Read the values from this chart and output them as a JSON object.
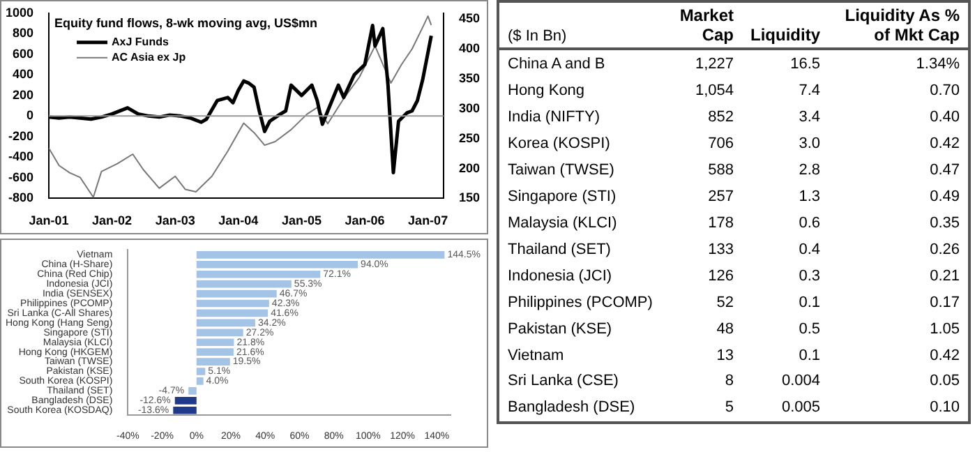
{
  "chart_data": [
    {
      "type": "line",
      "title": "Equity fund flows, 8-wk moving avg, US$mn",
      "legend": "top left",
      "xlim": [
        "2001-01",
        "2007-04"
      ],
      "xticks": [
        {
          "value": "2001-01",
          "label": "Jan-01"
        },
        {
          "value": "2002-01",
          "label": "Jan-02"
        },
        {
          "value": "2003-01",
          "label": "Jan-03"
        },
        {
          "value": "2004-01",
          "label": "Jan-04"
        },
        {
          "value": "2005-01",
          "label": "Jan-05"
        },
        {
          "value": "2006-01",
          "label": "Jan-06"
        },
        {
          "value": "2007-01",
          "label": "Jan-07"
        }
      ],
      "ylim": [
        -800,
        1000
      ],
      "yticks": [
        -800,
        -600,
        -400,
        -200,
        0,
        200,
        400,
        600,
        800,
        1000
      ],
      "y2lim": [
        150,
        460
      ],
      "y2ticks": [
        150,
        200,
        250,
        300,
        350,
        400,
        450
      ],
      "ref_lines": [
        {
          "axis": "y",
          "value": 0,
          "color": "#999999"
        }
      ],
      "series": [
        {
          "name": "AxJ Funds",
          "color": "#000000",
          "x": [
            "2001-01",
            "2001-03",
            "2001-05",
            "2001-07",
            "2001-09",
            "2001-11",
            "2002-01",
            "2002-04",
            "2002-06",
            "2002-08",
            "2002-10",
            "2002-12",
            "2003-02",
            "2003-04",
            "2003-06",
            "2003-07",
            "2003-09",
            "2003-11",
            "2003-12",
            "2004-01",
            "2004-02",
            "2004-03",
            "2004-04",
            "2004-05",
            "2004-06",
            "2004-07",
            "2004-09",
            "2004-10",
            "2004-11",
            "2005-01",
            "2005-03",
            "2005-04",
            "2005-05",
            "2005-06",
            "2005-08",
            "2005-09",
            "2005-11",
            "2006-01",
            "2006-02-15",
            "2006-03",
            "2006-04-15",
            "2006-05-15",
            "2006-06-15",
            "2006-07-15",
            "2006-09",
            "2006-10",
            "2006-11",
            "2006-12",
            "2007-01-20"
          ],
          "values": [
            -10,
            -20,
            -10,
            -20,
            -30,
            -10,
            20,
            80,
            20,
            0,
            -10,
            10,
            0,
            -20,
            -60,
            -30,
            150,
            180,
            130,
            250,
            340,
            320,
            280,
            50,
            -150,
            -50,
            20,
            50,
            300,
            200,
            300,
            150,
            -80,
            50,
            300,
            180,
            400,
            500,
            880,
            680,
            850,
            300,
            -550,
            -50,
            30,
            50,
            150,
            350,
            780
          ]
        },
        {
          "name": "AC Asia ex Jp",
          "color": "#777777",
          "axis": "y2",
          "x": [
            "2001-01",
            "2001-03",
            "2001-05",
            "2001-07",
            "2001-09-15",
            "2001-11",
            "2002-02",
            "2002-05",
            "2002-07",
            "2002-10",
            "2003-01",
            "2003-03",
            "2003-05",
            "2003-08",
            "2003-11",
            "2004-02",
            "2004-04",
            "2004-06",
            "2004-08",
            "2004-11",
            "2005-02",
            "2005-04",
            "2005-06",
            "2005-09",
            "2005-12",
            "2006-03",
            "2006-06",
            "2006-08",
            "2006-10",
            "2006-12",
            "2007-01",
            "2007-01-20"
          ],
          "values": [
            234,
            205,
            193,
            185,
            152,
            195,
            208,
            224,
            198,
            167,
            187,
            165,
            161,
            187,
            229,
            276,
            260,
            239,
            245,
            265,
            291,
            302,
            275,
            317,
            353,
            405,
            343,
            374,
            400,
            436,
            455,
            440
          ]
        }
      ]
    },
    {
      "type": "bar",
      "orientation": "horizontal",
      "categories": [
        "Vietnam",
        "China (H-Share)",
        "China (Red Chip)",
        "Indonesia (JCI)",
        "India (SENSEX)",
        "Philippines (PCOMP)",
        "Sri Lanka (C-All Shares)",
        "Hong Kong (Hang Seng)",
        "Singapore (STI)",
        "Malaysia (KLCI)",
        "Hong Kong (HKGEM)",
        "Taiwan (TWSE)",
        "Pakistan (KSE)",
        "South Korea (KOSPI)",
        "Thailand (SET)",
        "Bangladesh (DSE)",
        "South Korea (KOSDAQ)"
      ],
      "values": [
        144.5,
        94.0,
        72.1,
        55.3,
        46.7,
        42.3,
        41.6,
        34.2,
        27.2,
        21.8,
        21.6,
        19.5,
        5.1,
        4.0,
        -4.7,
        -12.6,
        -13.6
      ],
      "value_labels": [
        "144.5%",
        "94.0%",
        "72.1%",
        "55.3%",
        "46.7%",
        "42.3%",
        "41.6%",
        "34.2%",
        "27.2%",
        "21.8%",
        "21.6%",
        "19.5%",
        "5.1%",
        "4.0%",
        "-4.7%",
        "-12.6%",
        "-13.6%"
      ],
      "colors": [
        "#a3c4e6",
        "#a3c4e6",
        "#a3c4e6",
        "#a3c4e6",
        "#a3c4e6",
        "#a3c4e6",
        "#a3c4e6",
        "#a3c4e6",
        "#a3c4e6",
        "#a3c4e6",
        "#a3c4e6",
        "#a3c4e6",
        "#a3c4e6",
        "#a3c4e6",
        "#a3c4e6",
        "#1f3a8a",
        "#1f3a8a"
      ],
      "xlim": [
        -40,
        148
      ],
      "xticks": [
        {
          "value": -40,
          "label": "-40%"
        },
        {
          "value": -20,
          "label": "-20%"
        },
        {
          "value": 0,
          "label": "0%"
        },
        {
          "value": 20,
          "label": "20%"
        },
        {
          "value": 40,
          "label": "40%"
        },
        {
          "value": 60,
          "label": "60%"
        },
        {
          "value": 80,
          "label": "80%"
        },
        {
          "value": 100,
          "label": "100%"
        },
        {
          "value": 120,
          "label": "120%"
        },
        {
          "value": 140,
          "label": "140%"
        }
      ]
    },
    {
      "type": "other",
      "title": "($ In Bn)",
      "categories": [
        "China A and B",
        "Hong Kong",
        "India (NIFTY)",
        "Korea (KOSPI)",
        "Taiwan (TWSE)",
        "Singapore (STI)",
        "Malaysia (KLCI)",
        "Thailand (SET)",
        "Indonesia (JCI)",
        "Philippines (PCOMP)",
        "Pakistan (KSE)",
        "Vietnam",
        "Sri Lanka (CSE)",
        "Bangladesh (DSE)"
      ],
      "series": [
        {
          "name": "Market Cap",
          "values": [
            1227,
            1054,
            852,
            706,
            588,
            257,
            178,
            133,
            126,
            52,
            48,
            13,
            8,
            5
          ],
          "value_labels": [
            "1,227",
            "1,054",
            "852",
            "706",
            "588",
            "257",
            "178",
            "133",
            "126",
            "52",
            "48",
            "13",
            "8",
            "5"
          ]
        },
        {
          "name": "Liquidity",
          "values": [
            16.5,
            7.4,
            3.4,
            3.0,
            2.8,
            1.3,
            0.6,
            0.4,
            0.3,
            0.1,
            0.5,
            0.1,
            0.004,
            0.005
          ],
          "value_labels": [
            "16.5",
            "7.4",
            "3.4",
            "3.0",
            "2.8",
            "1.3",
            "0.6",
            "0.4",
            "0.3",
            "0.1",
            "0.5",
            "0.1",
            "0.004",
            "0.005"
          ]
        },
        {
          "name": "Liquidity As % of Mkt Cap",
          "values": [
            1.34,
            0.7,
            0.4,
            0.42,
            0.47,
            0.49,
            0.35,
            0.26,
            0.21,
            0.17,
            1.05,
            0.42,
            0.05,
            0.1
          ],
          "value_labels": [
            "1.34%",
            "0.70",
            "0.40",
            "0.42",
            "0.47",
            "0.49",
            "0.35",
            "0.26",
            "0.21",
            "0.17",
            "1.05",
            "0.42",
            "0.05",
            "0.10"
          ]
        }
      ]
    }
  ]
}
